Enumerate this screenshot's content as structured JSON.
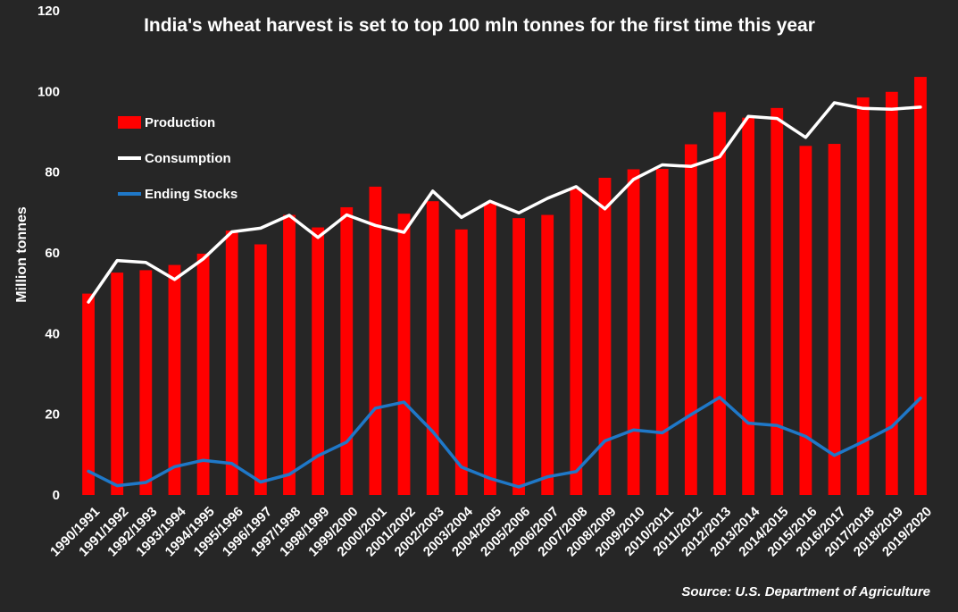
{
  "chart_data": {
    "type": "bar",
    "title": "India's wheat harvest is set to top 100 mln tonnes for the first time this year",
    "ylabel": "Million tonnes",
    "xlabel": "",
    "ylim": [
      0,
      120
    ],
    "yticks": [
      0,
      20,
      40,
      60,
      80,
      100,
      120
    ],
    "grid": false,
    "legend_position": "top-left",
    "source": "Source: U.S. Department of Agriculture",
    "categories": [
      "1990/1991",
      "1991/1992",
      "1992/1993",
      "1993/1994",
      "1994/1995",
      "1995/1996",
      "1996/1997",
      "1997/1998",
      "1998/1999",
      "1999/2000",
      "2000/2001",
      "2001/2002",
      "2002/2003",
      "2003/2004",
      "2004/2005",
      "2005/2006",
      "2006/2007",
      "2007/2008",
      "2008/2009",
      "2009/2010",
      "2010/2011",
      "2011/2012",
      "2012/2013",
      "2013/2014",
      "2014/2015",
      "2015/2016",
      "2016/2017",
      "2017/2018",
      "2018/2019",
      "2019/2020"
    ],
    "series": [
      {
        "name": "Production",
        "kind": "bar",
        "color": "#ff0000",
        "values": [
          49.9,
          55.1,
          55.7,
          57.0,
          59.8,
          65.5,
          62.1,
          69.4,
          66.3,
          71.3,
          76.4,
          69.7,
          72.8,
          65.8,
          72.2,
          68.6,
          69.4,
          75.8,
          78.6,
          80.7,
          80.8,
          86.9,
          94.9,
          93.5,
          95.9,
          86.5,
          87.0,
          98.5,
          99.9,
          103.6
        ]
      },
      {
        "name": "Consumption",
        "kind": "line",
        "color": "#ffffff",
        "values": [
          47.8,
          58.1,
          57.6,
          53.4,
          58.5,
          65.2,
          66.1,
          69.3,
          63.8,
          69.4,
          66.8,
          65.1,
          75.3,
          68.8,
          72.8,
          69.9,
          73.5,
          76.4,
          70.9,
          78.2,
          81.8,
          81.4,
          83.8,
          93.8,
          93.3,
          88.6,
          97.2,
          95.8,
          95.6,
          96.1
        ]
      },
      {
        "name": "Ending Stocks",
        "kind": "line",
        "color": "#1f78c8",
        "values": [
          5.9,
          2.3,
          3.1,
          7.0,
          8.6,
          7.8,
          3.2,
          5.1,
          9.7,
          13.1,
          21.5,
          23.0,
          15.7,
          6.9,
          4.1,
          2.0,
          4.5,
          5.8,
          13.4,
          16.1,
          15.4,
          19.9,
          24.2,
          17.8,
          17.2,
          14.5,
          9.8,
          13.2,
          16.9,
          24.0
        ]
      }
    ]
  }
}
